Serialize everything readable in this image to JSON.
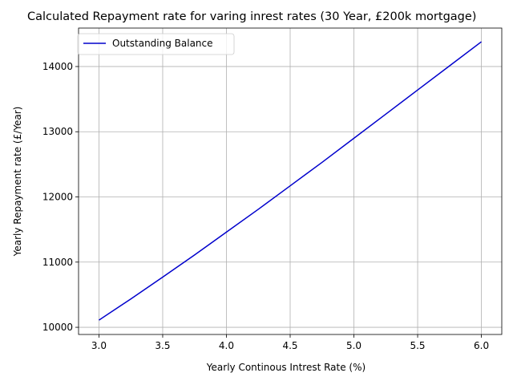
{
  "chart_data": {
    "type": "line",
    "title": "Calculated Repayment rate for varing inrest rates (30 Year, £200k mortgage)",
    "xlabel": "Yearly Continous Intrest Rate (%)",
    "ylabel": "Yearly Repayment rate (£/Year)",
    "xlim": [
      2.84,
      6.16
    ],
    "ylim": [
      9890,
      14590
    ],
    "xticks": [
      3.0,
      3.5,
      4.0,
      4.5,
      5.0,
      5.5,
      6.0
    ],
    "xtick_labels": [
      "3.0",
      "3.5",
      "4.0",
      "4.5",
      "5.0",
      "5.5",
      "6.0"
    ],
    "yticks": [
      10000,
      11000,
      12000,
      13000,
      14000
    ],
    "ytick_labels": [
      "10000",
      "11000",
      "12000",
      "13000",
      "14000"
    ],
    "grid": true,
    "legend_position": "upper-left",
    "series": [
      {
        "name": "Outstanding Balance",
        "color": "#0000cc",
        "x": [
          3.0,
          3.25,
          3.5,
          3.75,
          4.0,
          4.25,
          4.5,
          4.75,
          5.0,
          5.25,
          5.5,
          5.75,
          6.0
        ],
        "y": [
          10110,
          10435,
          10770,
          11110,
          11460,
          11810,
          12170,
          12530,
          12900,
          13270,
          13640,
          14010,
          14380
        ]
      }
    ]
  }
}
